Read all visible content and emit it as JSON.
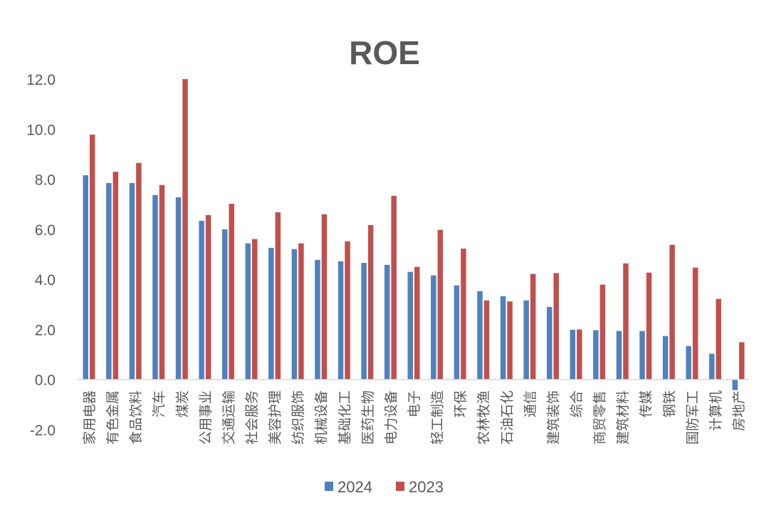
{
  "chart_data": {
    "type": "bar",
    "title": "ROE",
    "xlabel": "",
    "ylabel": "",
    "ylim": [
      -2,
      12
    ],
    "yticks": [
      "12.0",
      "10.0",
      "8.0",
      "6.0",
      "4.0",
      "2.0",
      "0.0",
      "-2.0"
    ],
    "grid": false,
    "legend_position": "bottom",
    "categories": [
      "家用电器",
      "有色金属",
      "食品饮料",
      "汽车",
      "煤炭",
      "公用事业",
      "交通运输",
      "社会服务",
      "美容护理",
      "纺织服饰",
      "机械设备",
      "基础化工",
      "医药生物",
      "电力设备",
      "电子",
      "轻工制造",
      "环保",
      "农林牧渔",
      "石油石化",
      "通信",
      "建筑装饰",
      "综合",
      "商贸零售",
      "建筑材料",
      "传媒",
      "钢铁",
      "国防军工",
      "计算机",
      "房地产"
    ],
    "series": [
      {
        "name": "2024",
        "color": "#4F81BD",
        "values": [
          8.16,
          7.85,
          7.85,
          7.37,
          7.28,
          6.34,
          6.0,
          5.44,
          5.26,
          5.21,
          4.78,
          4.72,
          4.66,
          4.58,
          4.3,
          4.16,
          3.76,
          3.53,
          3.33,
          3.16,
          2.9,
          1.99,
          1.97,
          1.94,
          1.94,
          1.74,
          1.34,
          1.03,
          -0.42
        ]
      },
      {
        "name": "2023",
        "color": "#C0504D",
        "values": [
          9.78,
          8.3,
          8.65,
          7.77,
          12.0,
          6.57,
          7.02,
          5.61,
          6.68,
          5.44,
          6.6,
          5.52,
          6.17,
          7.34,
          4.5,
          5.98,
          5.23,
          3.16,
          3.12,
          4.22,
          4.25,
          2.0,
          3.79,
          4.64,
          4.27,
          5.38,
          4.47,
          3.22,
          1.49
        ]
      }
    ]
  }
}
